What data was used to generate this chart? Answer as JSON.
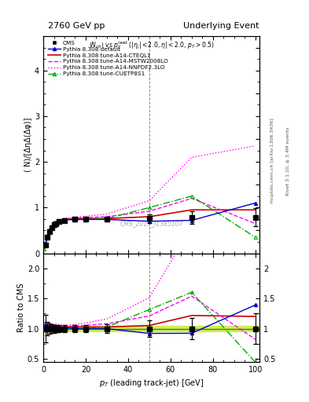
{
  "title_left": "2760 GeV pp",
  "title_right": "Underlying Event",
  "ylabel_main": "( N)/[ΔηΔ(Δφ)]",
  "ylabel_ratio": "Ratio to CMS",
  "xlabel": "p_{T} (leading track-jet) [GeV]",
  "watermark": "CMS_2015_I1385107",
  "right_label1": "Rivet 3.1.10, ≥ 3.4M events",
  "right_label2": "mcplots.cern.ch [arXiv:1306.3436]",
  "ylim_main": [
    0.0,
    4.75
  ],
  "ylim_ratio": [
    0.45,
    2.25
  ],
  "xlim": [
    0,
    102
  ],
  "cms_x": [
    1.0,
    2.0,
    3.0,
    4.0,
    5.0,
    6.0,
    7.5,
    10.0,
    15.0,
    20.0,
    30.0,
    50.0,
    70.0,
    100.0
  ],
  "cms_y": [
    0.18,
    0.35,
    0.48,
    0.56,
    0.62,
    0.65,
    0.69,
    0.72,
    0.74,
    0.74,
    0.74,
    0.76,
    0.78,
    0.79
  ],
  "cms_yerr": [
    0.04,
    0.04,
    0.04,
    0.04,
    0.04,
    0.04,
    0.04,
    0.04,
    0.04,
    0.04,
    0.05,
    0.1,
    0.14,
    0.2
  ],
  "default_x": [
    1.0,
    2.0,
    3.0,
    4.0,
    5.0,
    6.0,
    7.5,
    10.0,
    15.0,
    20.0,
    30.0,
    50.0,
    70.0,
    100.0
  ],
  "default_y": [
    0.19,
    0.36,
    0.5,
    0.58,
    0.63,
    0.67,
    0.7,
    0.73,
    0.74,
    0.74,
    0.74,
    0.7,
    0.72,
    1.1
  ],
  "cteql1_x": [
    0.5,
    1.0,
    2.0,
    3.0,
    4.0,
    5.0,
    6.0,
    7.5,
    10.0,
    15.0,
    20.0,
    30.0,
    50.0,
    70.0,
    100.0
  ],
  "cteql1_y": [
    0.1,
    0.19,
    0.37,
    0.51,
    0.59,
    0.64,
    0.68,
    0.71,
    0.74,
    0.76,
    0.76,
    0.76,
    0.8,
    0.95,
    0.95
  ],
  "mstw_x": [
    0.5,
    1.0,
    2.0,
    3.0,
    4.0,
    5.0,
    6.0,
    7.5,
    10.0,
    15.0,
    20.0,
    30.0,
    50.0,
    70.0,
    100.0
  ],
  "mstw_y": [
    0.1,
    0.2,
    0.38,
    0.52,
    0.6,
    0.65,
    0.69,
    0.72,
    0.75,
    0.77,
    0.78,
    0.8,
    0.92,
    1.2,
    0.65
  ],
  "nnpdf_x": [
    0.5,
    1.0,
    2.0,
    3.0,
    4.0,
    5.0,
    6.0,
    7.5,
    10.0,
    15.0,
    20.0,
    30.0,
    50.0,
    70.0,
    100.0
  ],
  "nnpdf_y": [
    0.1,
    0.2,
    0.38,
    0.52,
    0.6,
    0.66,
    0.7,
    0.73,
    0.76,
    0.79,
    0.81,
    0.86,
    1.15,
    2.1,
    2.35
  ],
  "cuetp_x": [
    0.5,
    1.0,
    2.0,
    3.0,
    4.0,
    5.0,
    6.0,
    7.5,
    10.0,
    15.0,
    20.0,
    30.0,
    50.0,
    70.0,
    100.0
  ],
  "cuetp_y": [
    0.1,
    0.19,
    0.36,
    0.5,
    0.58,
    0.63,
    0.67,
    0.7,
    0.73,
    0.74,
    0.74,
    0.76,
    1.0,
    1.25,
    0.35
  ],
  "ratio_band_low": 0.95,
  "ratio_band_high": 1.05,
  "ratio_band_color": "#d4e84a",
  "ratio_line_color": "#00aa00",
  "cms_color": "#000000",
  "default_color": "#0000cc",
  "cteql1_color": "#cc0000",
  "mstw_color": "#ff00ff",
  "nnpdf_color": "#ff00ff",
  "cuetp_color": "#00aa00"
}
